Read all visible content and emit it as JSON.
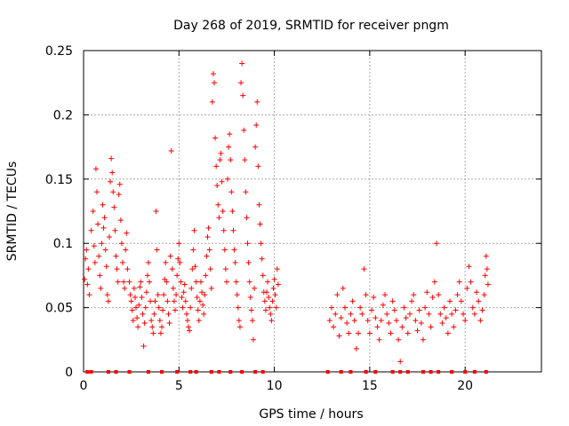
{
  "chart_data": {
    "type": "scatter",
    "title": "Day 268 of 2019, SRMTID for receiver pngm",
    "xlabel": "GPS time / hours",
    "ylabel": "SRMTID / TECUs",
    "xlim": [
      0,
      24
    ],
    "ylim": [
      0,
      0.25
    ],
    "x_ticks": [
      0,
      5,
      10,
      15,
      20
    ],
    "x_tick_labels": [
      "0",
      "5",
      "10",
      "15",
      "20"
    ],
    "y_ticks": [
      0,
      0.05,
      0.1,
      0.15,
      0.2,
      0.25
    ],
    "y_tick_labels": [
      "0",
      "0.05",
      "0.1",
      "0.15",
      "0.2",
      "0.25"
    ],
    "grid": true,
    "marker": "+",
    "series_color": "#ff0000",
    "series": [
      {
        "name": "SRMTID",
        "points": [
          [
            0.05,
            0.072
          ],
          [
            0.1,
            0.088
          ],
          [
            0.15,
            0.095
          ],
          [
            0.2,
            0.068
          ],
          [
            0.25,
            0.08
          ],
          [
            0.3,
            0.06
          ],
          [
            0.4,
            0.11
          ],
          [
            0.5,
            0.125
          ],
          [
            0.55,
            0.098
          ],
          [
            0.6,
            0.085
          ],
          [
            0.65,
            0.158
          ],
          [
            0.7,
            0.14
          ],
          [
            0.75,
            0.115
          ],
          [
            0.8,
            0.09
          ],
          [
            0.85,
            0.075
          ],
          [
            0.9,
            0.065
          ],
          [
            0.95,
            0.1
          ],
          [
            1.0,
            0.13
          ],
          [
            1.05,
            0.112
          ],
          [
            1.1,
            0.12
          ],
          [
            1.15,
            0.095
          ],
          [
            1.2,
            0.082
          ],
          [
            1.25,
            0.06
          ],
          [
            1.3,
            0.055
          ],
          [
            1.35,
            0.105
          ],
          [
            1.4,
            0.148
          ],
          [
            1.45,
            0.166
          ],
          [
            1.5,
            0.155
          ],
          [
            1.55,
            0.14
          ],
          [
            1.6,
            0.128
          ],
          [
            1.65,
            0.11
          ],
          [
            1.7,
            0.09
          ],
          [
            1.75,
            0.08
          ],
          [
            1.8,
            0.07
          ],
          [
            1.85,
            0.138
          ],
          [
            1.9,
            0.146
          ],
          [
            1.95,
            0.118
          ],
          [
            2.0,
            0.1
          ],
          [
            2.05,
            0.085
          ],
          [
            2.1,
            0.07
          ],
          [
            2.15,
            0.065
          ],
          [
            2.2,
            0.095
          ],
          [
            2.25,
            0.108
          ],
          [
            2.3,
            0.08
          ],
          [
            2.4,
            0.07
          ],
          [
            2.45,
            0.06
          ],
          [
            2.5,
            0.055
          ],
          [
            2.55,
            0.048
          ],
          [
            2.6,
            0.04
          ],
          [
            2.65,
            0.065
          ],
          [
            2.7,
            0.058
          ],
          [
            2.75,
            0.05
          ],
          [
            2.8,
            0.042
          ],
          [
            2.85,
            0.035
          ],
          [
            2.9,
            0.052
          ],
          [
            2.95,
            0.066
          ],
          [
            3.0,
            0.07
          ],
          [
            3.05,
            0.058
          ],
          [
            3.1,
            0.045
          ],
          [
            3.15,
            0.02
          ],
          [
            3.2,
            0.038
          ],
          [
            3.25,
            0.05
          ],
          [
            3.3,
            0.062
          ],
          [
            3.35,
            0.075
          ],
          [
            3.4,
            0.085
          ],
          [
            3.45,
            0.07
          ],
          [
            3.5,
            0.055
          ],
          [
            3.55,
            0.04
          ],
          [
            3.6,
            0.035
          ],
          [
            3.65,
            0.03
          ],
          [
            3.7,
            0.045
          ],
          [
            3.75,
            0.055
          ],
          [
            3.8,
            0.125
          ],
          [
            3.85,
            0.095
          ],
          [
            3.9,
            0.06
          ],
          [
            3.95,
            0.05
          ],
          [
            4.0,
            0.04
          ],
          [
            4.05,
            0.03
          ],
          [
            4.1,
            0.035
          ],
          [
            4.15,
            0.048
          ],
          [
            4.2,
            0.06
          ],
          [
            4.25,
            0.072
          ],
          [
            4.3,
            0.085
          ],
          [
            4.35,
            0.07
          ],
          [
            4.4,
            0.055
          ],
          [
            4.45,
            0.045
          ],
          [
            4.5,
            0.038
          ],
          [
            4.55,
            0.09
          ],
          [
            4.6,
            0.172
          ],
          [
            4.65,
            0.08
          ],
          [
            4.7,
            0.065
          ],
          [
            4.75,
            0.055
          ],
          [
            4.8,
            0.048
          ],
          [
            4.85,
            0.06
          ],
          [
            4.9,
            0.075
          ],
          [
            4.95,
            0.088
          ],
          [
            5.0,
            0.1
          ],
          [
            5.05,
            0.085
          ],
          [
            5.1,
            0.07
          ],
          [
            5.15,
            0.058
          ],
          [
            5.2,
            0.05
          ],
          [
            5.25,
            0.062
          ],
          [
            5.3,
            0.068
          ],
          [
            5.35,
            0.055
          ],
          [
            5.4,
            0.045
          ],
          [
            5.45,
            0.04
          ],
          [
            5.5,
            0.035
          ],
          [
            5.55,
            0.032
          ],
          [
            5.6,
            0.05
          ],
          [
            5.65,
            0.065
          ],
          [
            5.7,
            0.08
          ],
          [
            5.75,
            0.095
          ],
          [
            5.8,
            0.11
          ],
          [
            5.85,
            0.082
          ],
          [
            5.9,
            0.07
          ],
          [
            5.95,
            0.058
          ],
          [
            6.0,
            0.048
          ],
          [
            6.05,
            0.04
          ],
          [
            6.1,
            0.055
          ],
          [
            6.15,
            0.07
          ],
          [
            6.2,
            0.062
          ],
          [
            6.25,
            0.052
          ],
          [
            6.3,
            0.045
          ],
          [
            6.35,
            0.06
          ],
          [
            6.4,
            0.075
          ],
          [
            6.45,
            0.09
          ],
          [
            6.5,
            0.105
          ],
          [
            6.55,
            0.112
          ],
          [
            6.6,
            0.095
          ],
          [
            6.65,
            0.08
          ],
          [
            6.7,
            0.065
          ],
          [
            6.75,
            0.21
          ],
          [
            6.8,
            0.232
          ],
          [
            6.85,
            0.225
          ],
          [
            6.9,
            0.182
          ],
          [
            6.95,
            0.16
          ],
          [
            7.0,
            0.145
          ],
          [
            7.05,
            0.13
          ],
          [
            7.1,
            0.12
          ],
          [
            7.15,
            0.165
          ],
          [
            7.2,
            0.17
          ],
          [
            7.25,
            0.148
          ],
          [
            7.3,
            0.125
          ],
          [
            7.35,
            0.11
          ],
          [
            7.4,
            0.095
          ],
          [
            7.45,
            0.08
          ],
          [
            7.5,
            0.07
          ],
          [
            7.55,
            0.15
          ],
          [
            7.6,
            0.175
          ],
          [
            7.65,
            0.185
          ],
          [
            7.7,
            0.165
          ],
          [
            7.75,
            0.14
          ],
          [
            7.8,
            0.125
          ],
          [
            7.85,
            0.11
          ],
          [
            7.9,
            0.095
          ],
          [
            7.95,
            0.085
          ],
          [
            8.0,
            0.07
          ],
          [
            8.05,
            0.06
          ],
          [
            8.1,
            0.05
          ],
          [
            8.15,
            0.04
          ],
          [
            8.2,
            0.035
          ],
          [
            8.25,
            0.225
          ],
          [
            8.3,
            0.24
          ],
          [
            8.35,
            0.215
          ],
          [
            8.4,
            0.188
          ],
          [
            8.45,
            0.165
          ],
          [
            8.5,
            0.14
          ],
          [
            8.55,
            0.12
          ],
          [
            8.6,
            0.1
          ],
          [
            8.65,
            0.085
          ],
          [
            8.7,
            0.07
          ],
          [
            8.75,
            0.058
          ],
          [
            8.8,
            0.048
          ],
          [
            8.85,
            0.04
          ],
          [
            8.9,
            0.025
          ],
          [
            8.95,
            0.065
          ],
          [
            9.0,
            0.175
          ],
          [
            9.05,
            0.192
          ],
          [
            9.1,
            0.21
          ],
          [
            9.15,
            0.16
          ],
          [
            9.2,
            0.13
          ],
          [
            9.25,
            0.115
          ],
          [
            9.3,
            0.1
          ],
          [
            9.35,
            0.088
          ],
          [
            9.4,
            0.075
          ],
          [
            9.45,
            0.062
          ],
          [
            9.5,
            0.055
          ],
          [
            9.55,
            0.048
          ],
          [
            9.6,
            0.062
          ],
          [
            9.65,
            0.07
          ],
          [
            9.7,
            0.058
          ],
          [
            9.75,
            0.05
          ],
          [
            9.8,
            0.045
          ],
          [
            9.85,
            0.04
          ],
          [
            9.9,
            0.055
          ],
          [
            9.95,
            0.065
          ],
          [
            10.0,
            0.072
          ],
          [
            10.05,
            0.06
          ],
          [
            10.1,
            0.05
          ],
          [
            10.15,
            0.08
          ],
          [
            10.2,
            0.068
          ],
          [
            12.9,
            0.04
          ],
          [
            13.0,
            0.05
          ],
          [
            13.1,
            0.035
          ],
          [
            13.2,
            0.045
          ],
          [
            13.3,
            0.06
          ],
          [
            13.4,
            0.028
          ],
          [
            13.5,
            0.042
          ],
          [
            13.6,
            0.065
          ],
          [
            13.7,
            0.05
          ],
          [
            13.8,
            0.038
          ],
          [
            13.9,
            0.03
          ],
          [
            14.0,
            0.045
          ],
          [
            14.1,
            0.055
          ],
          [
            14.2,
            0.04
          ],
          [
            14.3,
            0.018
          ],
          [
            14.4,
            0.03
          ],
          [
            14.5,
            0.05
          ],
          [
            14.6,
            0.045
          ],
          [
            14.7,
            0.08
          ],
          [
            14.8,
            0.06
          ],
          [
            14.9,
            0.04
          ],
          [
            15.0,
            0.03
          ],
          [
            15.1,
            0.048
          ],
          [
            15.2,
            0.058
          ],
          [
            15.3,
            0.042
          ],
          [
            15.4,
            0.035
          ],
          [
            15.5,
            0.025
          ],
          [
            15.6,
            0.04
          ],
          [
            15.7,
            0.052
          ],
          [
            15.8,
            0.06
          ],
          [
            15.9,
            0.045
          ],
          [
            16.0,
            0.038
          ],
          [
            16.1,
            0.03
          ],
          [
            16.2,
            0.055
          ],
          [
            16.3,
            0.048
          ],
          [
            16.4,
            0.04
          ],
          [
            16.5,
            0.025
          ],
          [
            16.6,
            0.008
          ],
          [
            16.7,
            0.035
          ],
          [
            16.8,
            0.05
          ],
          [
            16.9,
            0.042
          ],
          [
            17.0,
            0.03
          ],
          [
            17.1,
            0.045
          ],
          [
            17.2,
            0.055
          ],
          [
            17.3,
            0.06
          ],
          [
            17.4,
            0.04
          ],
          [
            17.5,
            0.032
          ],
          [
            17.6,
            0.048
          ],
          [
            17.7,
            0.038
          ],
          [
            17.8,
            0.025
          ],
          [
            17.9,
            0.05
          ],
          [
            18.0,
            0.062
          ],
          [
            18.1,
            0.045
          ],
          [
            18.2,
            0.035
          ],
          [
            18.3,
            0.058
          ],
          [
            18.4,
            0.07
          ],
          [
            18.5,
            0.1
          ],
          [
            18.6,
            0.06
          ],
          [
            18.7,
            0.045
          ],
          [
            18.8,
            0.038
          ],
          [
            18.9,
            0.05
          ],
          [
            19.0,
            0.042
          ],
          [
            19.1,
            0.03
          ],
          [
            19.2,
            0.055
          ],
          [
            19.3,
            0.045
          ],
          [
            19.4,
            0.035
          ],
          [
            19.5,
            0.048
          ],
          [
            19.6,
            0.06
          ],
          [
            19.7,
            0.07
          ],
          [
            19.8,
            0.055
          ],
          [
            19.9,
            0.045
          ],
          [
            20.0,
            0.04
          ],
          [
            20.1,
            0.065
          ],
          [
            20.2,
            0.082
          ],
          [
            20.3,
            0.07
          ],
          [
            20.4,
            0.05
          ],
          [
            20.5,
            0.045
          ],
          [
            20.6,
            0.062
          ],
          [
            20.7,
            0.055
          ],
          [
            20.8,
            0.04
          ],
          [
            20.9,
            0.048
          ],
          [
            21.0,
            0.06
          ],
          [
            21.05,
            0.075
          ],
          [
            21.1,
            0.09
          ],
          [
            21.15,
            0.08
          ],
          [
            21.2,
            0.068
          ]
        ]
      }
    ],
    "baseline_markers": {
      "y": 0,
      "x": [
        0.2,
        0.4,
        1.3,
        1.7,
        2.4,
        3.4,
        4.1,
        4.9,
        5.6,
        5.9,
        6.7,
        7.1,
        7.7,
        8.3,
        9.0,
        9.4,
        12.8,
        13.5,
        14.0,
        14.8,
        15.3,
        16.2,
        16.6,
        17.0,
        17.8,
        18.2,
        18.6,
        19.3,
        20.0,
        20.5,
        21.1
      ]
    }
  }
}
